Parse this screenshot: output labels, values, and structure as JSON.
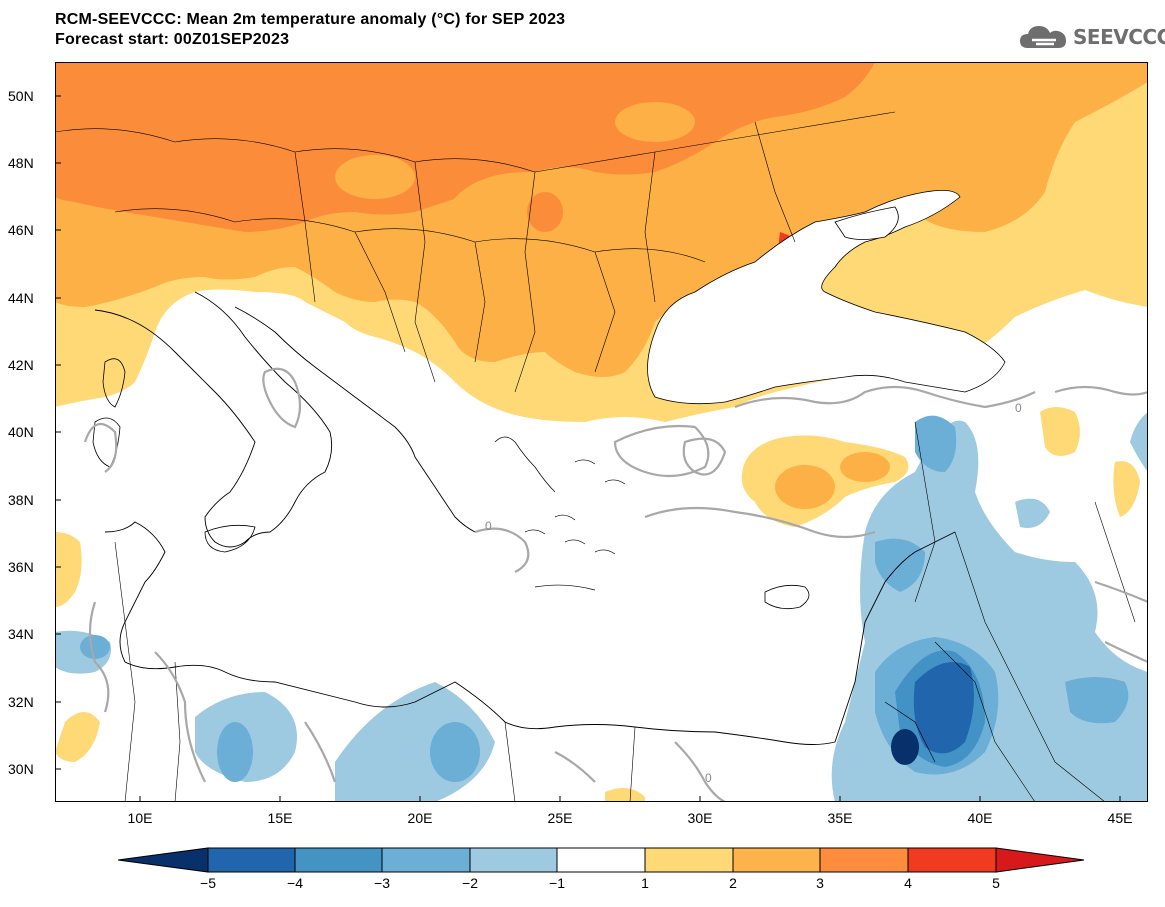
{
  "title": {
    "line1": "RCM-SEEVCCC: Mean 2m temperature anomaly (°C) for SEP 2023",
    "line2": "Forecast start: 00Z01SEP2023"
  },
  "logo": {
    "text": "SEEVCCC",
    "icon": "cloud-icon"
  },
  "map": {
    "latitude_labels": [
      "50N",
      "48N",
      "46N",
      "44N",
      "42N",
      "40N",
      "38N",
      "36N",
      "34N",
      "32N",
      "30N"
    ],
    "longitude_labels": [
      "10E",
      "15E",
      "20E",
      "25E",
      "30E",
      "35E",
      "40E",
      "45E"
    ],
    "contour_label": "0"
  },
  "colorbar": {
    "labels": [
      "−5",
      "−4",
      "−3",
      "−2",
      "−1",
      "1",
      "2",
      "3",
      "4",
      "5"
    ],
    "colors": [
      "#08306b",
      "#2166ac",
      "#4393c3",
      "#6baed6",
      "#9ecae1",
      "#ffffff",
      "#fed976",
      "#feb24c",
      "#fd8d3c",
      "#f03b20",
      "#d7191c"
    ]
  },
  "palette": {
    "warm_2_3": "#fdb045",
    "warm_3_4": "#fb8c3a",
    "warm_1_2": "#fed976",
    "cool_1_2": "#9ecae1",
    "cool_2_3": "#6baed6",
    "cool_3_4": "#4292c6",
    "cool_4_5": "#2166ac",
    "cool_5": "#08306b",
    "hot_4_5": "#f03b20"
  }
}
